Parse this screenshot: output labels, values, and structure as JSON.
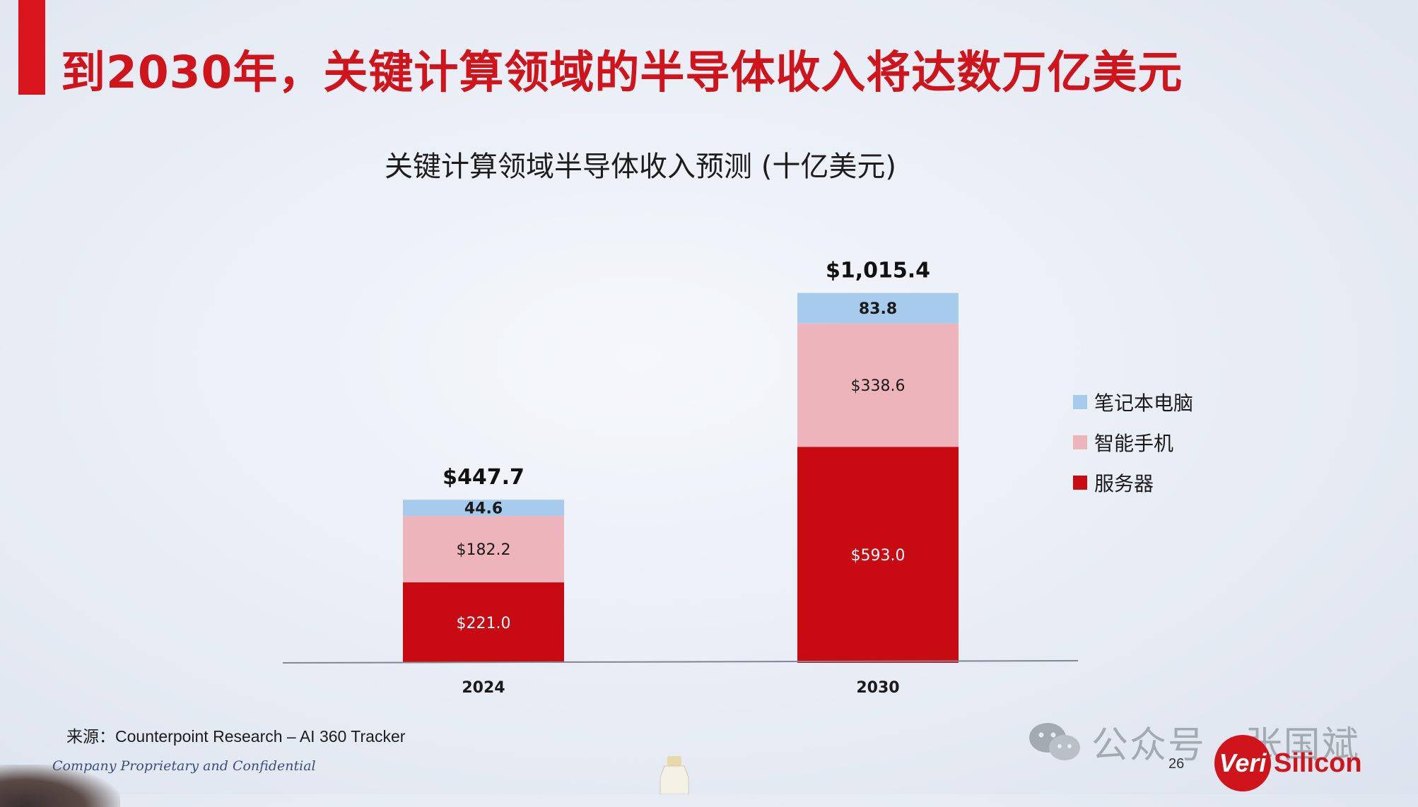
{
  "slide": {
    "title": "到2030年，关键计算领域的半导体收入将达数万亿美元",
    "source": "来源：Counterpoint Research – AI 360 Tracker",
    "confidential": "Company Proprietary and Confidential",
    "page_number": "26",
    "logo": {
      "veri": "Veri",
      "silicon": "Silicon"
    },
    "watermark": "公众号 · 张国斌",
    "colors": {
      "accent": "#d8141c",
      "title": "#d0141c"
    }
  },
  "chart_data": {
    "type": "bar",
    "stacked": true,
    "title": "关键计算领域半导体收入预测 (十亿美元)",
    "xlabel": "",
    "ylabel": "",
    "ylim": [
      0,
      1100
    ],
    "grid": false,
    "legend_position": "right",
    "categories": [
      "2024",
      "2030"
    ],
    "series": [
      {
        "name": "服务器",
        "values": [
          221.0,
          593.0
        ],
        "labels": [
          "$221.0",
          "$593.0"
        ],
        "color": "#c80a12"
      },
      {
        "name": "智能手机",
        "values": [
          182.2,
          338.6
        ],
        "labels": [
          "$182.2",
          "$338.6"
        ],
        "color": "#eeb4bb"
      },
      {
        "name": "笔记本电脑",
        "values": [
          44.6,
          83.8
        ],
        "labels": [
          "44.6",
          "83.8"
        ],
        "color": "#a6cbed"
      }
    ],
    "totals": [
      447.7,
      1015.4
    ],
    "total_labels": [
      "$447.7",
      "$1,015.4"
    ],
    "legend_order": [
      "笔记本电脑",
      "智能手机",
      "服务器"
    ]
  }
}
